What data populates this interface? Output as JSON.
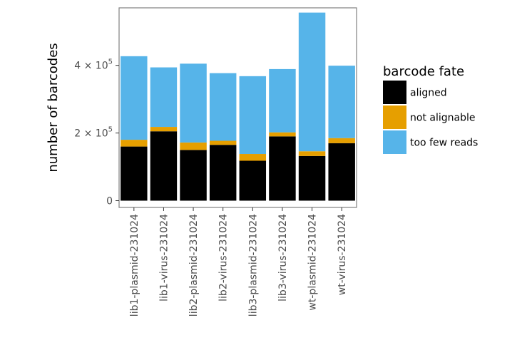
{
  "chart_data": {
    "type": "bar",
    "stacked": true,
    "orientation": "vertical",
    "categories": [
      "lib1-plasmid-231024",
      "lib1-virus-231024",
      "lib2-plasmid-231024",
      "lib2-virus-231024",
      "lib3-plasmid-231024",
      "lib3-virus-231024",
      "wt-plasmid-231024",
      "wt-virus-231024"
    ],
    "series": [
      {
        "name": "aligned",
        "color": "#000000",
        "values": [
          160000,
          205000,
          150000,
          165000,
          118000,
          190000,
          132000,
          170000
        ]
      },
      {
        "name": "not alignable",
        "color": "#E69F00",
        "values": [
          20000,
          13000,
          22000,
          12000,
          20000,
          12000,
          14000,
          15000
        ]
      },
      {
        "name": "too few reads",
        "color": "#56B4E9",
        "values": [
          247000,
          176000,
          233000,
          200000,
          230000,
          187000,
          410000,
          214000
        ]
      }
    ],
    "xlabel": "",
    "ylabel": "number of barcodes",
    "ylim": [
      -20000,
      570000
    ],
    "yticks": [
      {
        "value": 0,
        "label": "0",
        "exp": ""
      },
      {
        "value": 200000,
        "label": "2 × 10",
        "exp": "5"
      },
      {
        "value": 400000,
        "label": "4 × 10",
        "exp": "5"
      }
    ],
    "legend_title": "barcode fate",
    "legend_position": "right",
    "grid": false
  }
}
